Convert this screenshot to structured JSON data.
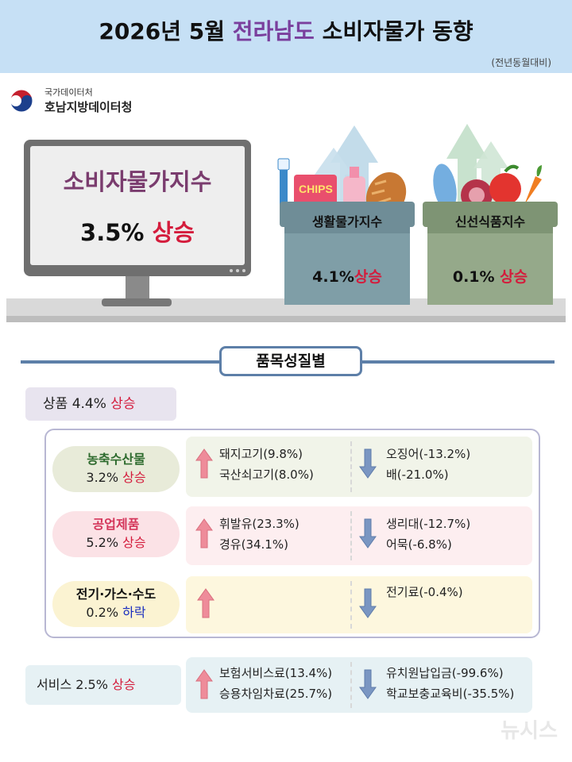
{
  "header": {
    "title_pre": "2026년 5월 ",
    "title_region": "전라남도",
    "title_post": " 소비자물가 동향",
    "subtitle": "(전년동월대비)"
  },
  "agency": {
    "line1": "국가데이터처",
    "line2": "호남지방데이터청"
  },
  "cpi": {
    "title": "소비자물가지수",
    "value": "3.5%",
    "direction": "상승"
  },
  "boxes": [
    {
      "label": "생활물가지수",
      "value": "4.1%",
      "direction": "상승"
    },
    {
      "label": "신선식품지수",
      "value": "0.1%",
      "direction": "상승"
    }
  ],
  "illustration": {
    "chips_text": "CHIPS"
  },
  "section_title": "품목성질별",
  "goods": {
    "label": "상품",
    "value": "4.4%",
    "direction": "상승"
  },
  "categories": [
    {
      "name": "농축수산물",
      "value": "3.2%",
      "direction": "상승",
      "up": [
        "돼지고기(9.8%)",
        "국산쇠고기(8.0%)"
      ],
      "down": [
        "오징어(-13.2%)",
        "배(-21.0%)"
      ]
    },
    {
      "name": "공업제품",
      "value": "5.2%",
      "direction": "상승",
      "up": [
        "휘발유(23.3%)",
        "경유(34.1%)"
      ],
      "down": [
        "생리대(-12.7%)",
        "어묵(-6.8%)"
      ]
    },
    {
      "name": "전기·가스·수도",
      "value": "0.2%",
      "direction": "하락",
      "up": [],
      "down": [
        "전기료(-0.4%)"
      ]
    }
  ],
  "services": {
    "label": "서비스",
    "value": "2.5%",
    "direction": "상승",
    "up": [
      "보험서비스료(13.4%)",
      "승용차임차료(25.7%)"
    ],
    "down": [
      "유치원납입금(-99.6%)",
      "학교보충교육비(-35.5%)"
    ]
  },
  "watermark": "뉴시스",
  "colors": {
    "rise": "#d41c3c",
    "fall": "#1a2dbf",
    "region": "#7a3f9d",
    "header_bg": "#c6e0f5",
    "section_line": "#5d7fa8"
  },
  "icons": {
    "up": "up-arrow-icon",
    "down": "down-arrow-icon"
  }
}
